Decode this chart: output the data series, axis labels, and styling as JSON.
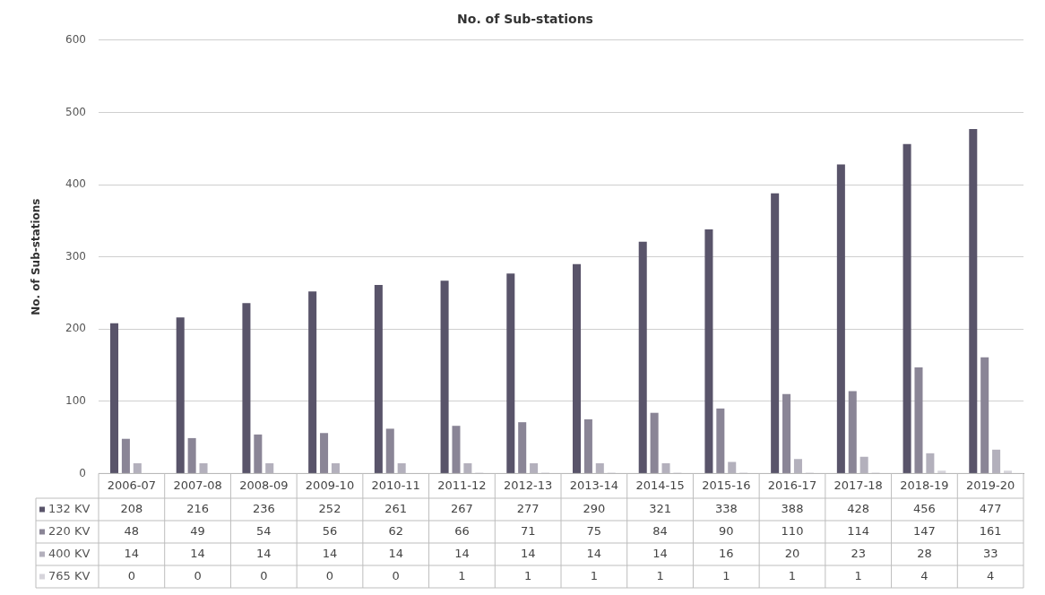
{
  "chart_data": {
    "type": "bar",
    "title": "No. of Sub-stations",
    "ylabel": "No. of Sub-stations",
    "categories": [
      "2006-07",
      "2007-08",
      "2008-09",
      "2009-10",
      "2010-11",
      "2011-12",
      "2012-13",
      "2013-14",
      "2014-15",
      "2015-16",
      "2016-17",
      "2017-18",
      "2018-19",
      "2019-20"
    ],
    "series": [
      {
        "name": "132 KV",
        "color": "#59546a",
        "values": [
          208,
          216,
          236,
          252,
          261,
          267,
          277,
          290,
          321,
          338,
          388,
          428,
          456,
          477
        ]
      },
      {
        "name": "220 KV",
        "color": "#8a8596",
        "values": [
          48,
          49,
          54,
          56,
          62,
          66,
          71,
          75,
          84,
          90,
          110,
          114,
          147,
          161
        ]
      },
      {
        "name": "400 KV",
        "color": "#b3b0bc",
        "values": [
          14,
          14,
          14,
          14,
          14,
          14,
          14,
          14,
          14,
          16,
          20,
          23,
          28,
          33
        ]
      },
      {
        "name": "765 KV",
        "color": "#d6d4db",
        "values": [
          0,
          0,
          0,
          0,
          0,
          1,
          1,
          1,
          1,
          1,
          1,
          1,
          4,
          4
        ]
      }
    ],
    "ylim": [
      0,
      600
    ],
    "yticks": [
      0,
      100,
      200,
      300,
      400,
      500,
      600
    ],
    "grid": "y",
    "legend": "bottom",
    "data_labels": true
  }
}
